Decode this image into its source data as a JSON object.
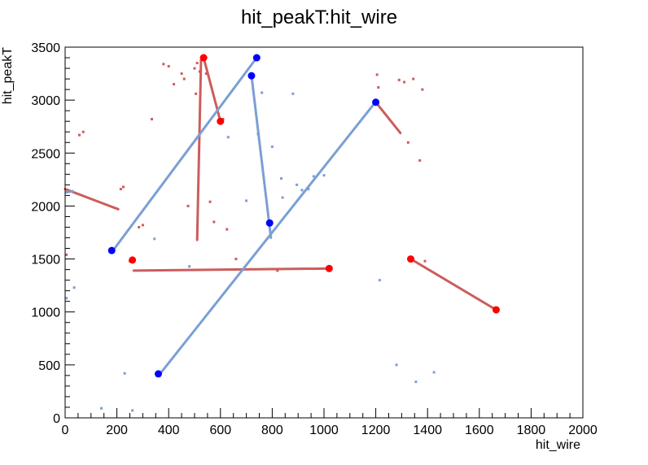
{
  "chart_data": {
    "type": "scatter",
    "title": "hit_peakT:hit_wire",
    "xlabel": "hit_wire",
    "ylabel": "hit_peakT",
    "xlim": [
      0,
      2000
    ],
    "ylim": [
      0,
      3500
    ],
    "xticks": [
      "0",
      "200",
      "400",
      "600",
      "800",
      "1000",
      "1200",
      "1400",
      "1600",
      "1800",
      "2000"
    ],
    "yticks": [
      "0",
      "500",
      "1000",
      "1500",
      "2000",
      "2500",
      "3000",
      "3500"
    ],
    "grid": false,
    "legend": "none",
    "colors": {
      "red_hits": "#cd5c5c",
      "blue_hits": "#7b9fd4",
      "red_vertex": "#ff0000",
      "blue_vertex": "#0000ff"
    },
    "series": [
      {
        "color": "red_hits",
        "tracks": [
          {
            "x": [
              0,
              205
            ],
            "y": [
              2160,
              1970
            ]
          },
          {
            "x": [
              265,
              1025
            ],
            "y": [
              1390,
              1410
            ]
          },
          {
            "x": [
              535,
              600
            ],
            "y": [
              3400,
              2800
            ]
          },
          {
            "x": [
              525,
              510
            ],
            "y": [
              3380,
              1680
            ]
          },
          {
            "x": [
              1200,
              1295
            ],
            "y": [
              2980,
              2690
            ]
          },
          {
            "x": [
              1335,
              1665
            ],
            "y": [
              1500,
              1020
            ]
          }
        ],
        "points": [
          {
            "x": 5,
            "y": 1540
          },
          {
            "x": 55,
            "y": 2670
          },
          {
            "x": 70,
            "y": 2700
          },
          {
            "x": 215,
            "y": 2160
          },
          {
            "x": 225,
            "y": 2180
          },
          {
            "x": 250,
            "y": 1480
          },
          {
            "x": 285,
            "y": 1800
          },
          {
            "x": 300,
            "y": 1820
          },
          {
            "x": 335,
            "y": 2820
          },
          {
            "x": 380,
            "y": 3340
          },
          {
            "x": 400,
            "y": 3320
          },
          {
            "x": 420,
            "y": 3150
          },
          {
            "x": 450,
            "y": 3250
          },
          {
            "x": 460,
            "y": 3200
          },
          {
            "x": 475,
            "y": 2000
          },
          {
            "x": 500,
            "y": 3300
          },
          {
            "x": 505,
            "y": 3060
          },
          {
            "x": 510,
            "y": 3350
          },
          {
            "x": 520,
            "y": 3270
          },
          {
            "x": 545,
            "y": 3250
          },
          {
            "x": 560,
            "y": 2040
          },
          {
            "x": 575,
            "y": 1850
          },
          {
            "x": 610,
            "y": 2820
          },
          {
            "x": 625,
            "y": 1780
          },
          {
            "x": 660,
            "y": 1500
          },
          {
            "x": 820,
            "y": 1390
          },
          {
            "x": 1205,
            "y": 3240
          },
          {
            "x": 1210,
            "y": 3120
          },
          {
            "x": 1290,
            "y": 3190
          },
          {
            "x": 1310,
            "y": 3170
          },
          {
            "x": 1325,
            "y": 2600
          },
          {
            "x": 1345,
            "y": 3200
          },
          {
            "x": 1370,
            "y": 2430
          },
          {
            "x": 1380,
            "y": 3100
          },
          {
            "x": 1390,
            "y": 1480
          }
        ],
        "vertices": [
          {
            "x": 535,
            "y": 3400
          },
          {
            "x": 600,
            "y": 2800
          },
          {
            "x": 260,
            "y": 1490
          },
          {
            "x": 1020,
            "y": 1410
          },
          {
            "x": 1335,
            "y": 1500
          },
          {
            "x": 1665,
            "y": 1020
          }
        ]
      },
      {
        "color": "blue_hits",
        "tracks": [
          {
            "x": [
              185,
              740
            ],
            "y": [
              1580,
              3400
            ]
          },
          {
            "x": [
              365,
              1200
            ],
            "y": [
              410,
              2985
            ]
          },
          {
            "x": [
              720,
              795
            ],
            "y": [
              3230,
              1700
            ]
          },
          {
            "x": [
              5,
              30
            ],
            "y": [
              2130,
              2140
            ]
          }
        ],
        "points": [
          {
            "x": 5,
            "y": 1130
          },
          {
            "x": 35,
            "y": 1230
          },
          {
            "x": 140,
            "y": 90
          },
          {
            "x": 230,
            "y": 420
          },
          {
            "x": 260,
            "y": 70
          },
          {
            "x": 345,
            "y": 1690
          },
          {
            "x": 480,
            "y": 1430
          },
          {
            "x": 630,
            "y": 2650
          },
          {
            "x": 700,
            "y": 2050
          },
          {
            "x": 745,
            "y": 2680
          },
          {
            "x": 760,
            "y": 3070
          },
          {
            "x": 800,
            "y": 2560
          },
          {
            "x": 835,
            "y": 2260
          },
          {
            "x": 840,
            "y": 2080
          },
          {
            "x": 880,
            "y": 3060
          },
          {
            "x": 895,
            "y": 2200
          },
          {
            "x": 915,
            "y": 2150
          },
          {
            "x": 940,
            "y": 2160
          },
          {
            "x": 960,
            "y": 2280
          },
          {
            "x": 1000,
            "y": 2290
          },
          {
            "x": 1215,
            "y": 1300
          },
          {
            "x": 1280,
            "y": 500
          },
          {
            "x": 1355,
            "y": 340
          },
          {
            "x": 1425,
            "y": 430
          }
        ],
        "vertices": [
          {
            "x": 180,
            "y": 1580
          },
          {
            "x": 740,
            "y": 3400
          },
          {
            "x": 720,
            "y": 3230
          },
          {
            "x": 790,
            "y": 1840
          },
          {
            "x": 1200,
            "y": 2980
          },
          {
            "x": 360,
            "y": 415
          }
        ]
      }
    ]
  }
}
